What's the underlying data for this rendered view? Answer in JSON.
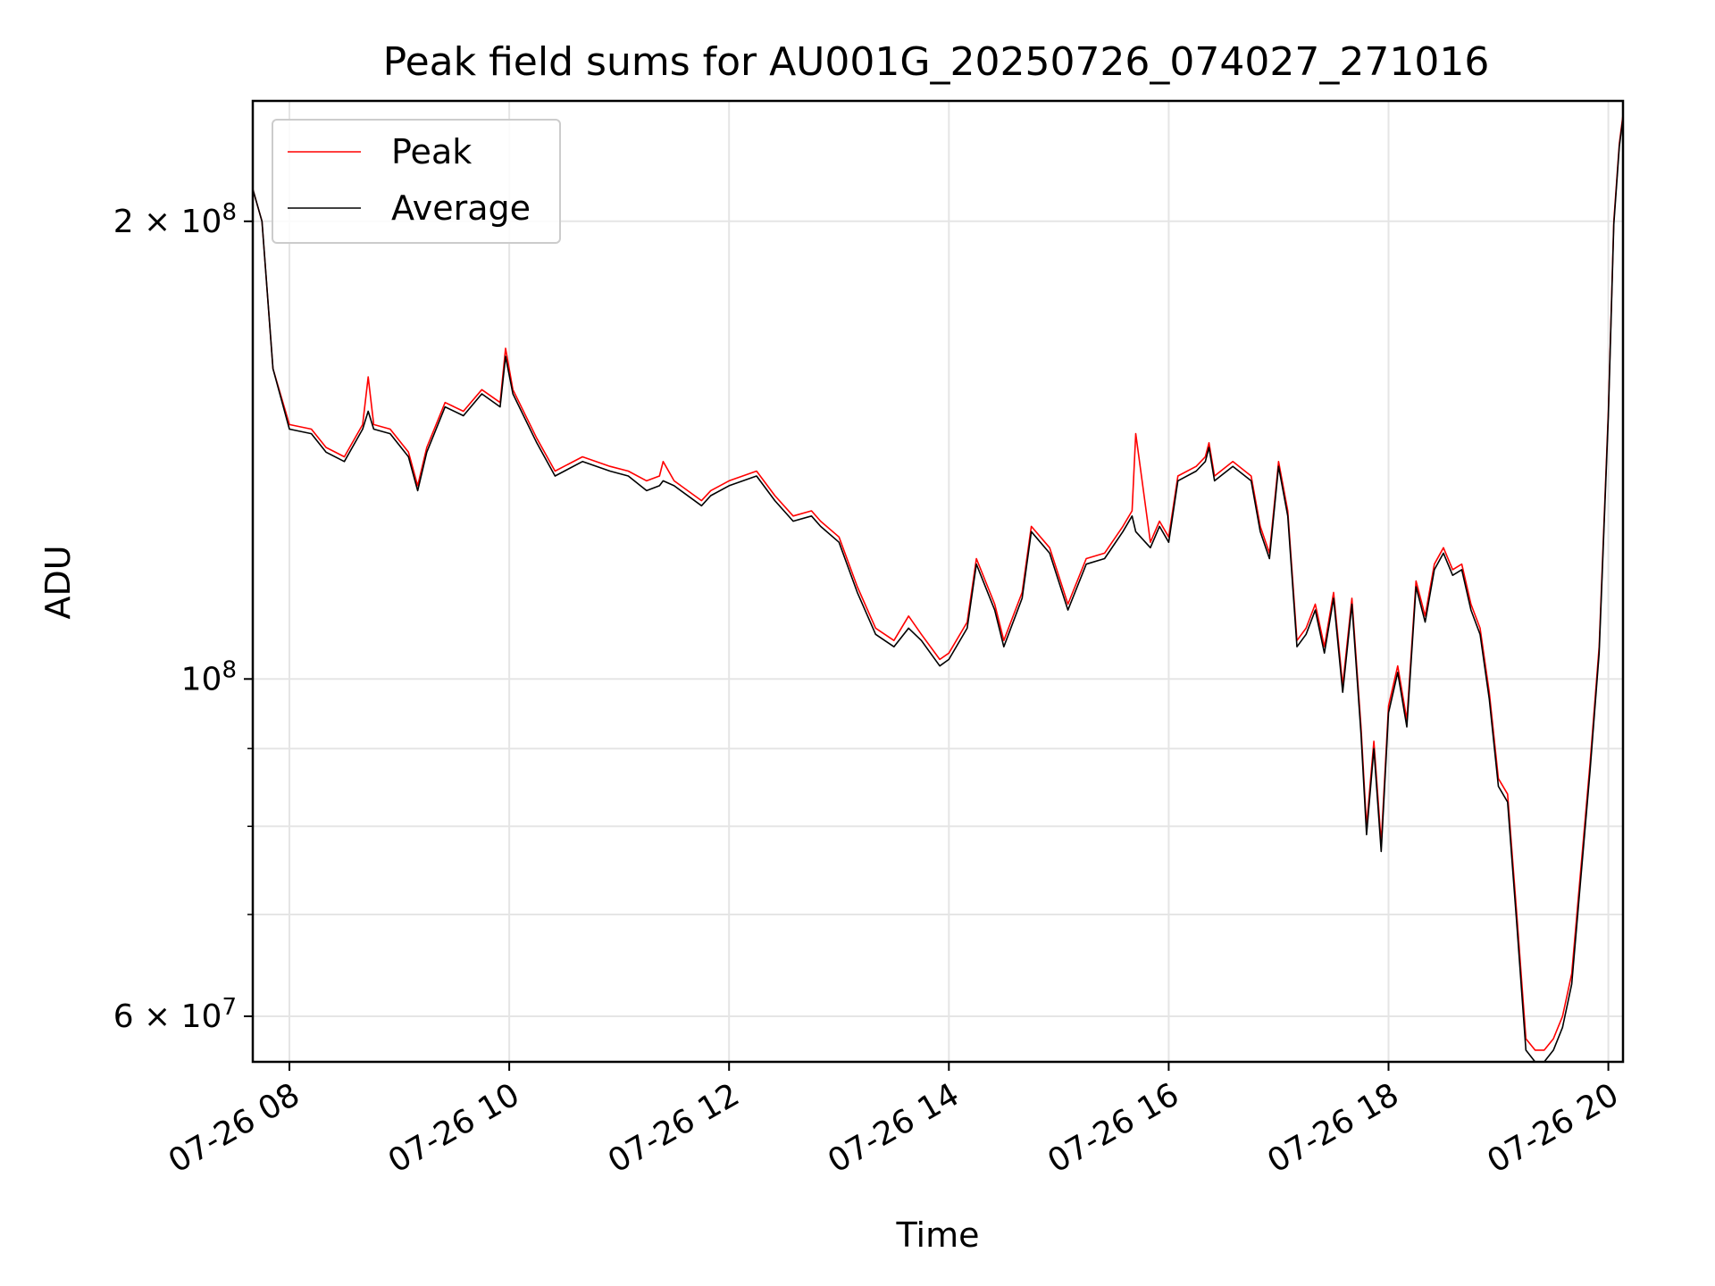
{
  "chart_data": {
    "type": "line",
    "title": "Peak field sums for AU001G_20250726_074027_271016",
    "xlabel": "Time",
    "ylabel": "ADU",
    "yscale": "log",
    "xlim": [
      "2025-07-26 07:40",
      "2025-07-26 20:08"
    ],
    "ylim": [
      56000000,
      240000000
    ],
    "grid": true,
    "legend_position": "top-left",
    "x_ticks": [
      {
        "value": "2025-07-26 08:00",
        "label": "07-26 08"
      },
      {
        "value": "2025-07-26 10:00",
        "label": "07-26 10"
      },
      {
        "value": "2025-07-26 12:00",
        "label": "07-26 12"
      },
      {
        "value": "2025-07-26 14:00",
        "label": "07-26 14"
      },
      {
        "value": "2025-07-26 16:00",
        "label": "07-26 16"
      },
      {
        "value": "2025-07-26 18:00",
        "label": "07-26 18"
      },
      {
        "value": "2025-07-26 20:00",
        "label": "07-26 20"
      }
    ],
    "y_ticks_major": [
      {
        "value": 60000000,
        "base": "6 × 10",
        "exp": "7"
      },
      {
        "value": 100000000,
        "base": "10",
        "exp": "8"
      },
      {
        "value": 200000000,
        "base": "2 × 10",
        "exp": "8"
      }
    ],
    "y_ticks_minor": [
      70000000,
      80000000,
      90000000
    ],
    "series": [
      {
        "name": "Peak",
        "color": "#ff0000",
        "x": [
          "2025-07-26 07:40",
          "2025-07-26 07:45",
          "2025-07-26 07:51",
          "2025-07-26 08:00",
          "2025-07-26 08:12",
          "2025-07-26 08:20",
          "2025-07-26 08:30",
          "2025-07-26 08:40",
          "2025-07-26 08:43",
          "2025-07-26 08:46",
          "2025-07-26 08:55",
          "2025-07-26 09:05",
          "2025-07-26 09:10",
          "2025-07-26 09:15",
          "2025-07-26 09:25",
          "2025-07-26 09:35",
          "2025-07-26 09:45",
          "2025-07-26 09:55",
          "2025-07-26 09:58",
          "2025-07-26 10:02",
          "2025-07-26 10:15",
          "2025-07-26 10:25",
          "2025-07-26 10:40",
          "2025-07-26 10:55",
          "2025-07-26 11:05",
          "2025-07-26 11:15",
          "2025-07-26 11:22",
          "2025-07-26 11:24",
          "2025-07-26 11:30",
          "2025-07-26 11:45",
          "2025-07-26 11:50",
          "2025-07-26 12:00",
          "2025-07-26 12:15",
          "2025-07-26 12:25",
          "2025-07-26 12:35",
          "2025-07-26 12:45",
          "2025-07-26 12:50",
          "2025-07-26 13:00",
          "2025-07-26 13:10",
          "2025-07-26 13:20",
          "2025-07-26 13:30",
          "2025-07-26 13:38",
          "2025-07-26 13:45",
          "2025-07-26 13:55",
          "2025-07-26 14:00",
          "2025-07-26 14:10",
          "2025-07-26 14:15",
          "2025-07-26 14:25",
          "2025-07-26 14:30",
          "2025-07-26 14:40",
          "2025-07-26 14:45",
          "2025-07-26 14:55",
          "2025-07-26 15:05",
          "2025-07-26 15:15",
          "2025-07-26 15:25",
          "2025-07-26 15:35",
          "2025-07-26 15:40",
          "2025-07-26 15:42",
          "2025-07-26 15:50",
          "2025-07-26 15:55",
          "2025-07-26 16:00",
          "2025-07-26 16:05",
          "2025-07-26 16:15",
          "2025-07-26 16:20",
          "2025-07-26 16:22",
          "2025-07-26 16:25",
          "2025-07-26 16:35",
          "2025-07-26 16:45",
          "2025-07-26 16:50",
          "2025-07-26 16:55",
          "2025-07-26 17:00",
          "2025-07-26 17:05",
          "2025-07-26 17:10",
          "2025-07-26 17:15",
          "2025-07-26 17:20",
          "2025-07-26 17:25",
          "2025-07-26 17:30",
          "2025-07-26 17:35",
          "2025-07-26 17:40",
          "2025-07-26 17:45",
          "2025-07-26 17:48",
          "2025-07-26 17:52",
          "2025-07-26 17:56",
          "2025-07-26 18:00",
          "2025-07-26 18:05",
          "2025-07-26 18:10",
          "2025-07-26 18:15",
          "2025-07-26 18:20",
          "2025-07-26 18:25",
          "2025-07-26 18:30",
          "2025-07-26 18:35",
          "2025-07-26 18:40",
          "2025-07-26 18:45",
          "2025-07-26 18:50",
          "2025-07-26 18:55",
          "2025-07-26 19:00",
          "2025-07-26 19:05",
          "2025-07-26 19:10",
          "2025-07-26 19:15",
          "2025-07-26 19:20",
          "2025-07-26 19:25",
          "2025-07-26 19:30",
          "2025-07-26 19:35",
          "2025-07-26 19:40",
          "2025-07-26 19:45",
          "2025-07-26 19:50",
          "2025-07-26 19:55",
          "2025-07-26 20:00",
          "2025-07-26 20:03",
          "2025-07-26 20:06",
          "2025-07-26 20:08"
        ],
        "y": [
          210000000,
          200000000,
          160000000,
          147000000,
          146000000,
          142000000,
          140000000,
          147000000,
          158000000,
          147000000,
          146000000,
          141000000,
          134000000,
          142000000,
          152000000,
          150000000,
          155000000,
          152000000,
          165000000,
          155000000,
          144000000,
          137000000,
          140000000,
          138000000,
          137000000,
          135000000,
          136000000,
          139000000,
          135000000,
          131000000,
          133000000,
          135000000,
          137000000,
          132000000,
          128000000,
          129000000,
          127000000,
          124000000,
          115000000,
          108000000,
          106000000,
          110000000,
          107000000,
          103000000,
          104000000,
          109000000,
          120000000,
          112000000,
          106000000,
          114000000,
          126000000,
          122000000,
          112000000,
          120000000,
          121000000,
          126000000,
          129000000,
          145000000,
          123000000,
          127000000,
          124000000,
          136000000,
          138000000,
          140000000,
          143000000,
          136000000,
          139000000,
          136000000,
          126000000,
          121000000,
          139000000,
          129000000,
          106000000,
          108000000,
          112000000,
          105000000,
          114000000,
          99000000,
          113000000,
          93000000,
          80000000,
          91000000,
          78000000,
          96000000,
          102000000,
          94000000,
          116000000,
          110000000,
          119000000,
          122000000,
          118000000,
          119000000,
          112000000,
          108000000,
          98000000,
          86000000,
          84000000,
          70000000,
          58000000,
          57000000,
          57000000,
          58000000,
          60000000,
          64000000,
          75000000,
          88000000,
          105000000,
          150000000,
          200000000,
          225000000,
          235000000
        ]
      },
      {
        "name": "Average",
        "color": "#000000",
        "x": [
          "2025-07-26 07:40",
          "2025-07-26 07:45",
          "2025-07-26 07:51",
          "2025-07-26 08:00",
          "2025-07-26 08:12",
          "2025-07-26 08:20",
          "2025-07-26 08:30",
          "2025-07-26 08:40",
          "2025-07-26 08:43",
          "2025-07-26 08:46",
          "2025-07-26 08:55",
          "2025-07-26 09:05",
          "2025-07-26 09:10",
          "2025-07-26 09:15",
          "2025-07-26 09:25",
          "2025-07-26 09:35",
          "2025-07-26 09:45",
          "2025-07-26 09:55",
          "2025-07-26 09:58",
          "2025-07-26 10:02",
          "2025-07-26 10:15",
          "2025-07-26 10:25",
          "2025-07-26 10:40",
          "2025-07-26 10:55",
          "2025-07-26 11:05",
          "2025-07-26 11:15",
          "2025-07-26 11:22",
          "2025-07-26 11:24",
          "2025-07-26 11:30",
          "2025-07-26 11:45",
          "2025-07-26 11:50",
          "2025-07-26 12:00",
          "2025-07-26 12:15",
          "2025-07-26 12:25",
          "2025-07-26 12:35",
          "2025-07-26 12:45",
          "2025-07-26 12:50",
          "2025-07-26 13:00",
          "2025-07-26 13:10",
          "2025-07-26 13:20",
          "2025-07-26 13:30",
          "2025-07-26 13:38",
          "2025-07-26 13:45",
          "2025-07-26 13:55",
          "2025-07-26 14:00",
          "2025-07-26 14:10",
          "2025-07-26 14:15",
          "2025-07-26 14:25",
          "2025-07-26 14:30",
          "2025-07-26 14:40",
          "2025-07-26 14:45",
          "2025-07-26 14:55",
          "2025-07-26 15:05",
          "2025-07-26 15:15",
          "2025-07-26 15:25",
          "2025-07-26 15:35",
          "2025-07-26 15:40",
          "2025-07-26 15:42",
          "2025-07-26 15:50",
          "2025-07-26 15:55",
          "2025-07-26 16:00",
          "2025-07-26 16:05",
          "2025-07-26 16:15",
          "2025-07-26 16:20",
          "2025-07-26 16:22",
          "2025-07-26 16:25",
          "2025-07-26 16:35",
          "2025-07-26 16:45",
          "2025-07-26 16:50",
          "2025-07-26 16:55",
          "2025-07-26 17:00",
          "2025-07-26 17:05",
          "2025-07-26 17:10",
          "2025-07-26 17:15",
          "2025-07-26 17:20",
          "2025-07-26 17:25",
          "2025-07-26 17:30",
          "2025-07-26 17:35",
          "2025-07-26 17:40",
          "2025-07-26 17:45",
          "2025-07-26 17:48",
          "2025-07-26 17:52",
          "2025-07-26 17:56",
          "2025-07-26 18:00",
          "2025-07-26 18:05",
          "2025-07-26 18:10",
          "2025-07-26 18:15",
          "2025-07-26 18:20",
          "2025-07-26 18:25",
          "2025-07-26 18:30",
          "2025-07-26 18:35",
          "2025-07-26 18:40",
          "2025-07-26 18:45",
          "2025-07-26 18:50",
          "2025-07-26 18:55",
          "2025-07-26 19:00",
          "2025-07-26 19:05",
          "2025-07-26 19:10",
          "2025-07-26 19:15",
          "2025-07-26 19:20",
          "2025-07-26 19:25",
          "2025-07-26 19:30",
          "2025-07-26 19:35",
          "2025-07-26 19:40",
          "2025-07-26 19:45",
          "2025-07-26 19:50",
          "2025-07-26 19:55",
          "2025-07-26 20:00",
          "2025-07-26 20:03",
          "2025-07-26 20:06",
          "2025-07-26 20:08"
        ],
        "y": [
          210000000,
          200000000,
          160000000,
          146000000,
          145000000,
          141000000,
          139000000,
          146000000,
          150000000,
          146000000,
          145000000,
          140000000,
          133000000,
          141000000,
          151000000,
          149000000,
          154000000,
          151000000,
          163000000,
          154000000,
          143000000,
          136000000,
          139000000,
          137000000,
          136000000,
          133000000,
          134000000,
          135000000,
          134000000,
          130000000,
          132000000,
          134000000,
          136000000,
          131000000,
          127000000,
          128000000,
          126000000,
          123000000,
          114000000,
          107000000,
          105000000,
          108000000,
          106000000,
          102000000,
          103000000,
          108000000,
          119000000,
          111000000,
          105000000,
          113000000,
          125000000,
          121000000,
          111000000,
          119000000,
          120000000,
          125000000,
          128000000,
          125000000,
          122000000,
          126000000,
          123000000,
          135000000,
          137000000,
          139000000,
          142000000,
          135000000,
          138000000,
          135000000,
          125000000,
          120000000,
          138000000,
          128000000,
          105000000,
          107000000,
          111000000,
          104000000,
          113000000,
          98000000,
          112000000,
          92000000,
          79000000,
          90000000,
          77000000,
          95000000,
          101000000,
          93000000,
          115000000,
          109000000,
          118000000,
          121000000,
          117000000,
          118000000,
          111000000,
          107000000,
          97000000,
          85000000,
          83000000,
          69000000,
          57000000,
          56000000,
          56000000,
          57000000,
          59000000,
          63000000,
          74000000,
          87000000,
          104000000,
          149000000,
          199000000,
          224000000,
          234000000
        ]
      }
    ]
  }
}
